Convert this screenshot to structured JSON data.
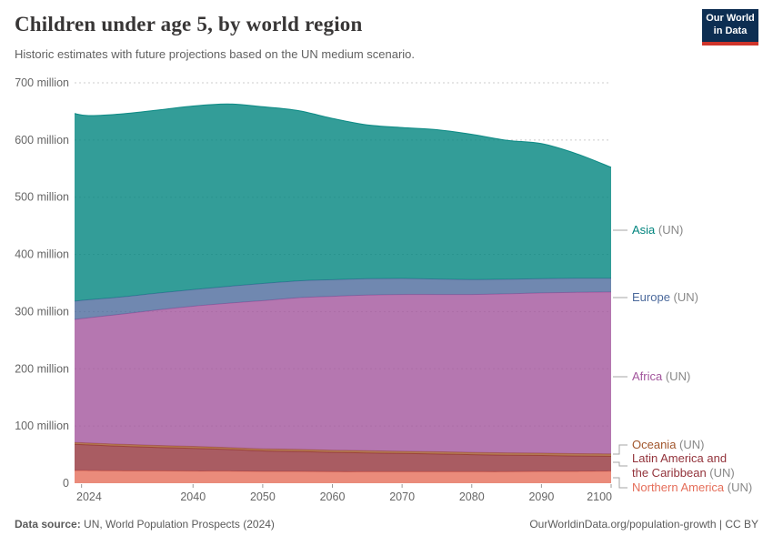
{
  "header": {
    "title": "Children under age 5, by world region",
    "subtitle": "Historic estimates with future projections based on the UN medium scenario.",
    "logo": {
      "line1": "Our World",
      "line2": "in Data"
    }
  },
  "chart_data": {
    "type": "area",
    "stacked": true,
    "unit": "million",
    "xlim": [
      2023,
      2100
    ],
    "ylim": [
      0,
      700000000
    ],
    "grid": "dashed-horizontal",
    "x": [
      2023,
      2025,
      2030,
      2035,
      2040,
      2045,
      2050,
      2055,
      2060,
      2065,
      2070,
      2075,
      2080,
      2085,
      2090,
      2095,
      2100
    ],
    "series": [
      {
        "name": "Northern America (UN)",
        "color": "#E56E5A",
        "values_millions": [
          22,
          22,
          21.5,
          21.5,
          21,
          21,
          20.5,
          20.5,
          20,
          20,
          20,
          20,
          20,
          20,
          20.5,
          20.5,
          21
        ]
      },
      {
        "name": "Latin America and the Caribbean (UN)",
        "color": "#93333B",
        "values_millions": [
          46,
          45,
          43,
          41,
          40,
          38,
          36,
          35,
          34,
          33,
          32,
          31,
          30,
          29,
          28,
          27,
          26
        ]
      },
      {
        "name": "Oceania (UN)",
        "color": "#A1562C",
        "values_millions": [
          3.3,
          3.3,
          3.4,
          3.5,
          3.5,
          3.6,
          3.7,
          3.7,
          3.8,
          3.9,
          3.9,
          4,
          4,
          4.1,
          4.2,
          4.2,
          4.3
        ]
      },
      {
        "name": "Africa (UN)",
        "color": "#A2559C",
        "values_millions": [
          215,
          219,
          228,
          237,
          245,
          252,
          259,
          265,
          269,
          272,
          274,
          275,
          276,
          278,
          280,
          282,
          283
        ]
      },
      {
        "name": "Europe (UN)",
        "color": "#4C6A9C",
        "values_millions": [
          32,
          31.5,
          30,
          29.5,
          29,
          29.5,
          30,
          29.5,
          29,
          28.5,
          28,
          27,
          26,
          25.5,
          25,
          24.5,
          24
        ]
      },
      {
        "name": "Asia (UN)",
        "color": "#00847E",
        "values_millions": [
          328,
          322,
          320,
          320,
          321,
          319,
          309,
          298,
          282,
          269,
          264,
          261,
          254,
          243,
          236,
          218,
          194
        ]
      }
    ],
    "legend": [
      {
        "label": "Asia",
        "suffix": "(UN)",
        "color": "#00847E"
      },
      {
        "label": "Europe",
        "suffix": "(UN)",
        "color": "#4C6A9C"
      },
      {
        "label": "Africa",
        "suffix": "(UN)",
        "color": "#A2559C"
      },
      {
        "label": "Oceania",
        "suffix": "(UN)",
        "color": "#A1562C"
      },
      {
        "label": "Latin America and the Caribbean",
        "suffix": "(UN)",
        "color": "#93333B"
      },
      {
        "label": "Northern America",
        "suffix": "(UN)",
        "color": "#E56E5A"
      }
    ],
    "y_ticks": [
      {
        "value": 0,
        "label": "0"
      },
      {
        "value": 100,
        "label": "100 million"
      },
      {
        "value": 200,
        "label": "200 million"
      },
      {
        "value": 300,
        "label": "300 million"
      },
      {
        "value": 400,
        "label": "400 million"
      },
      {
        "value": 500,
        "label": "500 million"
      },
      {
        "value": 600,
        "label": "600 million"
      },
      {
        "value": 700,
        "label": "700 million"
      }
    ],
    "x_ticks": [
      2024,
      2040,
      2050,
      2060,
      2070,
      2080,
      2090,
      2100
    ]
  },
  "footer": {
    "source_label": "Data source:",
    "source_text": " UN, World Population Prospects (2024)",
    "credit": "OurWorldinData.org/population-growth | CC BY"
  }
}
